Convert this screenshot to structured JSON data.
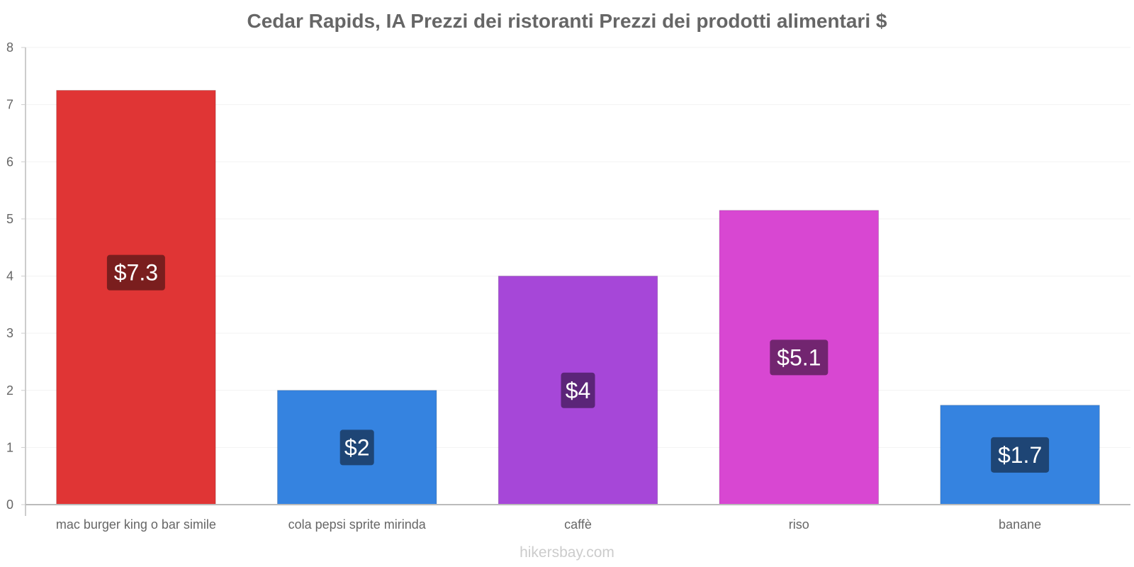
{
  "chart_data": {
    "type": "bar",
    "title": "Cedar Rapids, IA Prezzi dei ristoranti Prezzi dei prodotti alimentari $",
    "categories": [
      "mac burger king o bar simile",
      "cola pepsi sprite mirinda",
      "caffè",
      "riso",
      "banane"
    ],
    "values": [
      7.25,
      2.0,
      4.0,
      5.15,
      1.74
    ],
    "value_labels": [
      "$7.3",
      "$2",
      "$4",
      "$5.1",
      "$1.7"
    ],
    "bar_colors": [
      "#e03535",
      "#3583e0",
      "#a647d8",
      "#d847d2",
      "#3583e0"
    ],
    "label_bg_colors": [
      "#7a1e1e",
      "#1e4575",
      "#5b2578",
      "#722570",
      "#1e4575"
    ],
    "ylim": [
      0,
      8
    ],
    "yticks": [
      0,
      1,
      2,
      3,
      4,
      5,
      6,
      7,
      8
    ],
    "xlabel": "",
    "ylabel": "",
    "grid": true,
    "legend": false
  },
  "watermark": "hikersbay.com"
}
